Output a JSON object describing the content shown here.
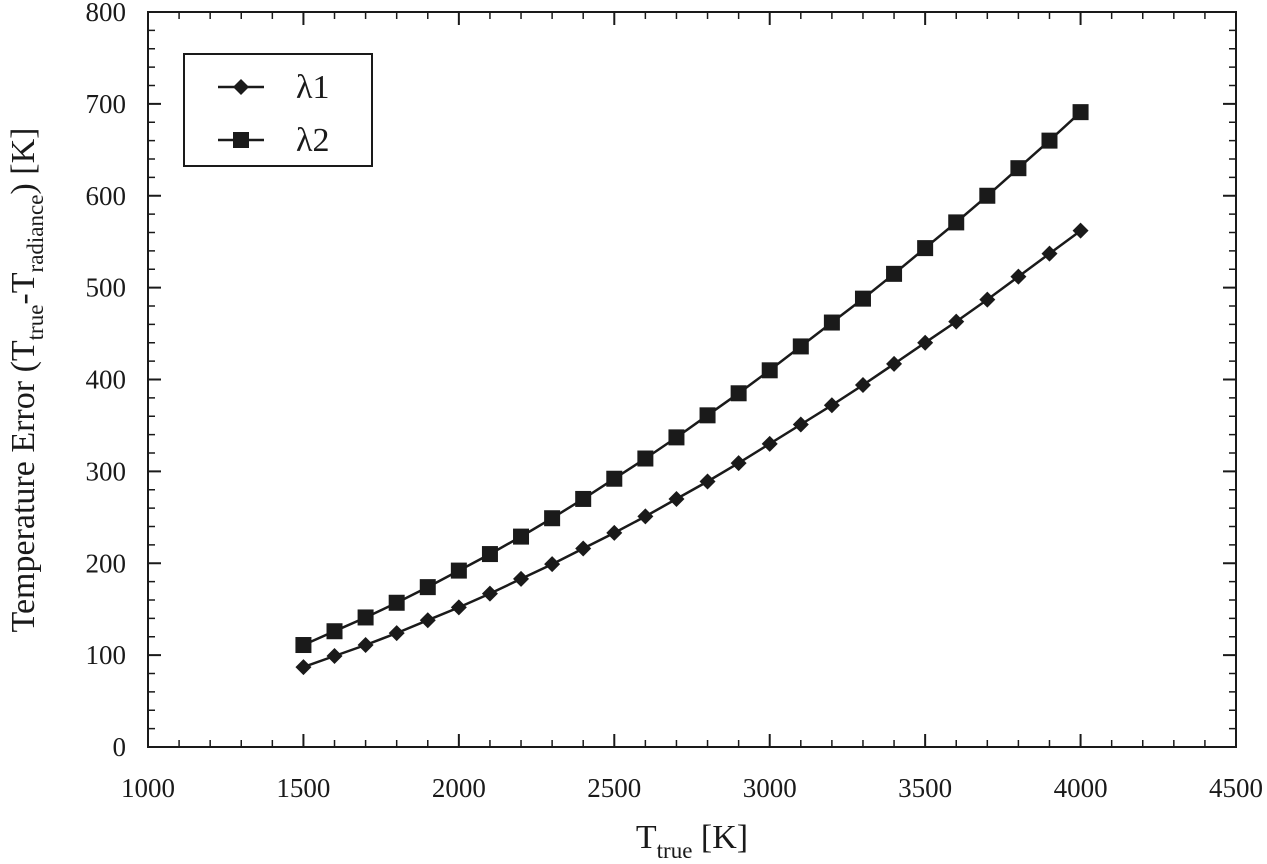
{
  "chart_data": {
    "type": "line",
    "title": "",
    "xlabel": {
      "main": "T",
      "sub": "true",
      "unit": " [K]"
    },
    "ylabel": {
      "prefix": "Temperature Error (T",
      "sub1": "true",
      "mid": "-T",
      "sub2": "radiance",
      "suffix": ") [K]"
    },
    "xlim": [
      1000,
      4500
    ],
    "ylim": [
      0,
      800
    ],
    "xticks": [
      1000,
      1500,
      2000,
      2500,
      3000,
      3500,
      4000,
      4500
    ],
    "xticks_minor_step": 100,
    "yticks": [
      0,
      100,
      200,
      300,
      400,
      500,
      600,
      700,
      800
    ],
    "yticks_minor_step": 20,
    "grid": false,
    "legend_position": "top-left",
    "x": [
      1500,
      1600,
      1700,
      1800,
      1900,
      2000,
      2100,
      2200,
      2300,
      2400,
      2500,
      2600,
      2700,
      2800,
      2900,
      3000,
      3100,
      3200,
      3300,
      3400,
      3500,
      3600,
      3700,
      3800,
      3900,
      4000
    ],
    "series": [
      {
        "name": "λ1",
        "marker": "diamond",
        "color": "#1a1a1a",
        "values": [
          87,
          99,
          111,
          124,
          138,
          152,
          167,
          183,
          199,
          216,
          233,
          251,
          270,
          289,
          309,
          330,
          351,
          372,
          394,
          417,
          440,
          463,
          487,
          512,
          537,
          562
        ]
      },
      {
        "name": "λ2",
        "marker": "square",
        "color": "#1a1a1a",
        "values": [
          111,
          126,
          141,
          157,
          174,
          192,
          210,
          229,
          249,
          270,
          292,
          314,
          337,
          361,
          385,
          410,
          436,
          462,
          488,
          515,
          543,
          571,
          600,
          630,
          660,
          691
        ]
      }
    ]
  }
}
